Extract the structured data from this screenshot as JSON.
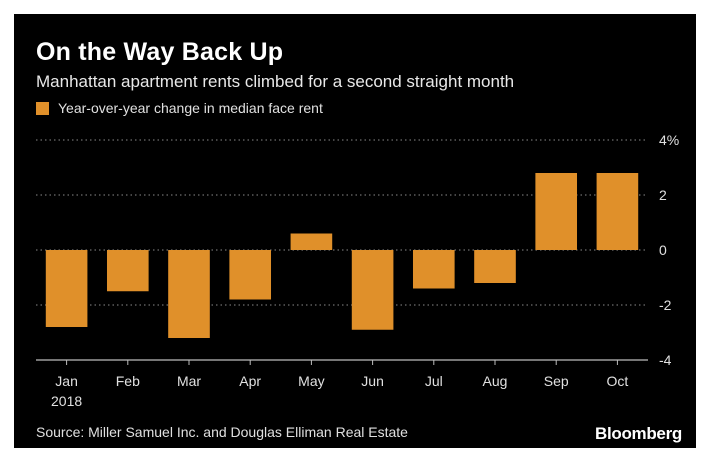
{
  "title": "On the Way Back Up",
  "subtitle": "Manhattan apartment rents climbed for a second straight month",
  "legend_label": "Year-over-year change in median face rent",
  "source": "Source: Miller Samuel Inc. and Douglas Elliman Real Estate",
  "brand": "Bloomberg",
  "colors": {
    "bar": "#e0902a",
    "background": "#000000",
    "grid": "#8a8a8a",
    "text": "#ffffff"
  },
  "chart_data": {
    "type": "bar",
    "categories": [
      "Jan",
      "Feb",
      "Mar",
      "Apr",
      "May",
      "Jun",
      "Jul",
      "Aug",
      "Sep",
      "Oct"
    ],
    "category_sublabels": [
      "2018",
      "",
      "",
      "",
      "",
      "",
      "",
      "",
      "",
      ""
    ],
    "series": [
      {
        "name": "Year-over-year change in median face rent",
        "values": [
          -2.8,
          -1.5,
          -3.2,
          -1.8,
          0.6,
          -2.9,
          -1.4,
          -1.2,
          2.8,
          2.8
        ]
      }
    ],
    "ylim": [
      -4,
      4
    ],
    "yticks": [
      4,
      2,
      0,
      -2,
      -4
    ],
    "ytick_labels": [
      "4%",
      "2",
      "0",
      "-2",
      "-4"
    ],
    "y_axis_position": "right",
    "grid": "horizontal-dotted",
    "legend_position": "top-left"
  }
}
